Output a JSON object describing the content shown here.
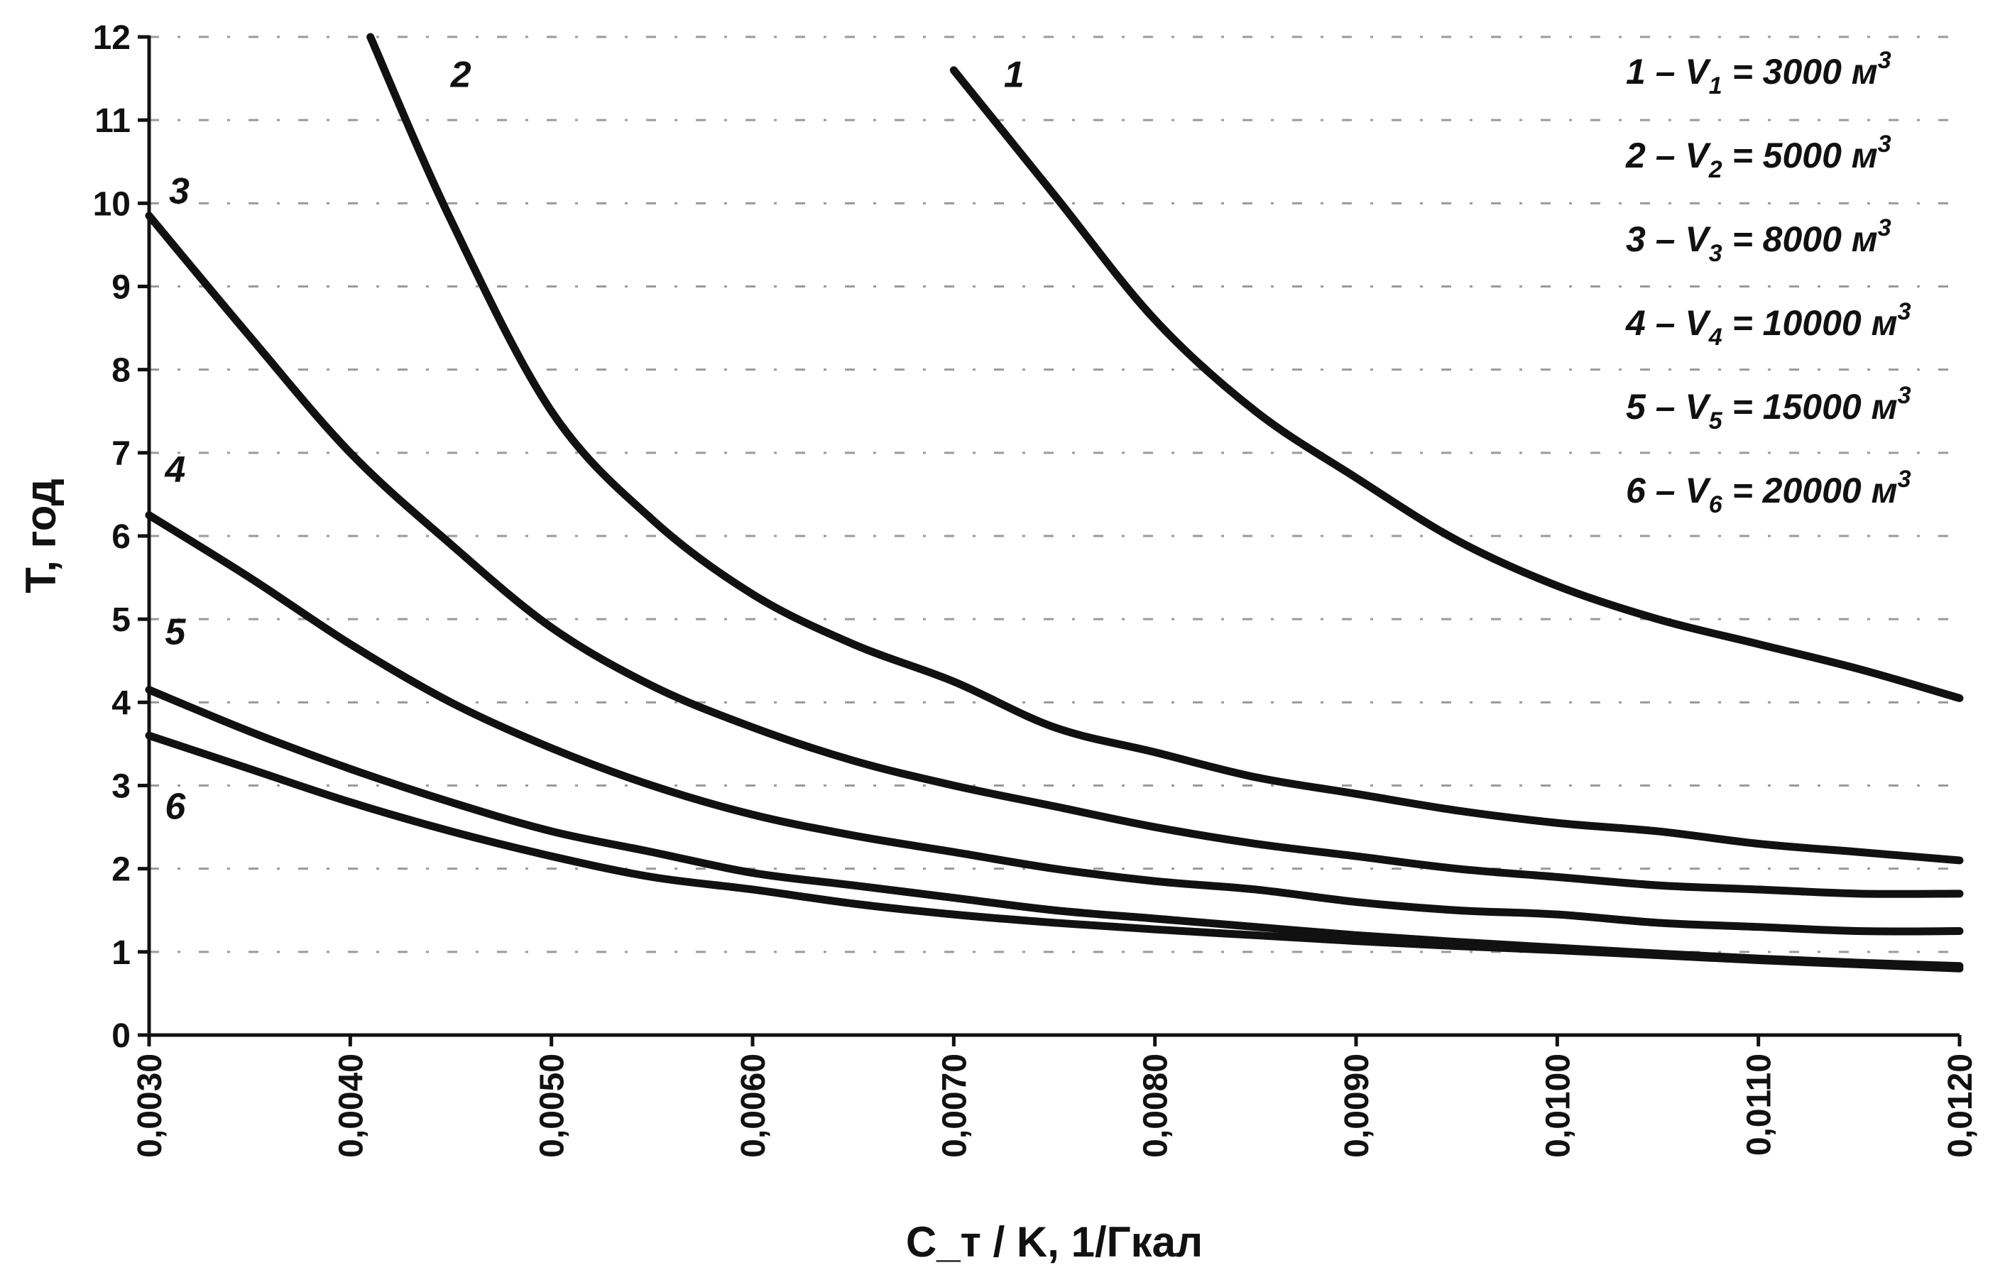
{
  "chart_data": {
    "type": "line",
    "title": "",
    "xlabel": "C_т / K, 1/Гкал",
    "ylabel": "T, год",
    "xlim": [
      0.003,
      0.012
    ],
    "ylim": [
      0,
      12
    ],
    "grid": "horizontal dashed",
    "legend_position": "top-right",
    "x_ticks": [
      "0,0030",
      "0,0040",
      "0,0050",
      "0,0060",
      "0,0070",
      "0,0080",
      "0,0090",
      "0,0100",
      "0,0110",
      "0,0120"
    ],
    "y_ticks": [
      "0",
      "1",
      "2",
      "3",
      "4",
      "5",
      "6",
      "7",
      "8",
      "9",
      "10",
      "11",
      "12"
    ],
    "legend": [
      {
        "num": "1",
        "var": "V",
        "sub": "1",
        "value": "3000 м",
        "sup": "3"
      },
      {
        "num": "2",
        "var": "V",
        "sub": "2",
        "value": "5000 м",
        "sup": "3"
      },
      {
        "num": "3",
        "var": "V",
        "sub": "3",
        "value": "8000 м",
        "sup": "3"
      },
      {
        "num": "4",
        "var": "V",
        "sub": "4",
        "value": "10000 м",
        "sup": "3"
      },
      {
        "num": "5",
        "var": "V",
        "sub": "5",
        "value": "15000 м",
        "sup": "3"
      },
      {
        "num": "6",
        "var": "V",
        "sub": "6",
        "value": "20000 м",
        "sup": "3"
      }
    ],
    "series": [
      {
        "name": "1",
        "x": [
          0.007,
          0.0075,
          0.008,
          0.0085,
          0.009,
          0.0095,
          0.01,
          0.0105,
          0.011,
          0.0115,
          0.012
        ],
        "y": [
          11.6,
          10.1,
          8.6,
          7.5,
          6.7,
          5.95,
          5.4,
          5.0,
          4.7,
          4.4,
          4.05
        ]
      },
      {
        "name": "2",
        "x": [
          0.0041,
          0.0045,
          0.005,
          0.0055,
          0.006,
          0.0065,
          0.007,
          0.0075,
          0.008,
          0.0085,
          0.009,
          0.0095,
          0.01,
          0.0105,
          0.011,
          0.0115,
          0.012
        ],
        "y": [
          12.0,
          9.8,
          7.5,
          6.2,
          5.3,
          4.7,
          4.25,
          3.7,
          3.4,
          3.1,
          2.9,
          2.7,
          2.55,
          2.45,
          2.3,
          2.2,
          2.1
        ]
      },
      {
        "name": "3",
        "x": [
          0.003,
          0.0035,
          0.004,
          0.0045,
          0.005,
          0.0055,
          0.006,
          0.0065,
          0.007,
          0.0075,
          0.008,
          0.0085,
          0.009,
          0.0095,
          0.01,
          0.0105,
          0.011,
          0.0115,
          0.012
        ],
        "y": [
          9.85,
          8.4,
          7.0,
          5.9,
          4.9,
          4.2,
          3.7,
          3.3,
          3.0,
          2.75,
          2.5,
          2.3,
          2.15,
          2.0,
          1.9,
          1.8,
          1.75,
          1.7,
          1.7
        ]
      },
      {
        "name": "4",
        "x": [
          0.003,
          0.0035,
          0.004,
          0.0045,
          0.005,
          0.0055,
          0.006,
          0.0065,
          0.007,
          0.0075,
          0.008,
          0.0085,
          0.009,
          0.0095,
          0.01,
          0.0105,
          0.011,
          0.0115,
          0.012
        ],
        "y": [
          6.25,
          5.5,
          4.7,
          4.0,
          3.45,
          3.0,
          2.65,
          2.4,
          2.2,
          2.0,
          1.85,
          1.75,
          1.6,
          1.5,
          1.45,
          1.35,
          1.3,
          1.25,
          1.25
        ]
      },
      {
        "name": "5",
        "x": [
          0.003,
          0.0035,
          0.004,
          0.0045,
          0.005,
          0.0055,
          0.006,
          0.0065,
          0.007,
          0.0075,
          0.008,
          0.0085,
          0.009,
          0.0095,
          0.01,
          0.0105,
          0.011,
          0.0115,
          0.012
        ],
        "y": [
          4.15,
          3.65,
          3.2,
          2.8,
          2.45,
          2.2,
          1.95,
          1.8,
          1.65,
          1.5,
          1.4,
          1.3,
          1.2,
          1.12,
          1.05,
          0.98,
          0.92,
          0.87,
          0.83
        ]
      },
      {
        "name": "6",
        "x": [
          0.003,
          0.0035,
          0.004,
          0.0045,
          0.005,
          0.0055,
          0.006,
          0.0065,
          0.007,
          0.0075,
          0.008,
          0.0085,
          0.009,
          0.0095,
          0.01,
          0.0105,
          0.011,
          0.0115,
          0.012
        ],
        "y": [
          3.6,
          3.2,
          2.8,
          2.45,
          2.15,
          1.9,
          1.75,
          1.58,
          1.45,
          1.35,
          1.27,
          1.2,
          1.13,
          1.07,
          1.02,
          0.96,
          0.9,
          0.85,
          0.8
        ]
      }
    ],
    "curve_labels": [
      {
        "text": "1",
        "x": 0.0073,
        "y": 11.4
      },
      {
        "text": "2",
        "x": 0.00455,
        "y": 11.4
      },
      {
        "text": "3",
        "x": 0.00315,
        "y": 10.0
      },
      {
        "text": "4",
        "x": 0.00313,
        "y": 6.65
      },
      {
        "text": "5",
        "x": 0.00313,
        "y": 4.7
      },
      {
        "text": "6",
        "x": 0.00313,
        "y": 2.6
      }
    ]
  }
}
